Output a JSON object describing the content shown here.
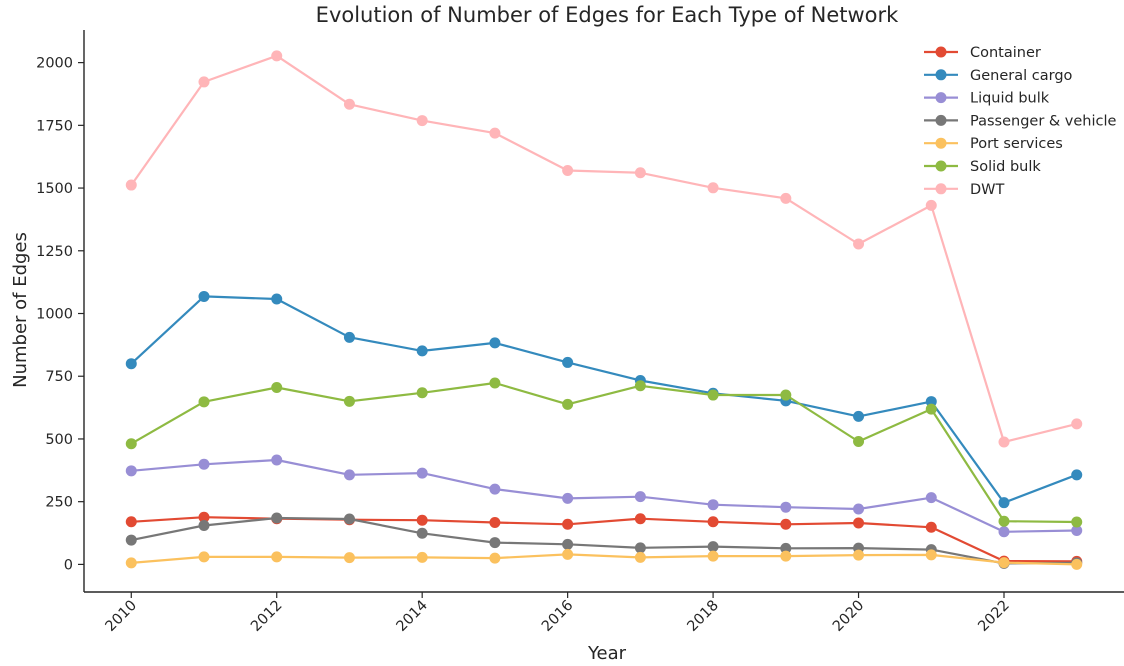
{
  "chart_data": {
    "type": "line",
    "title": "Evolution of Number of Edges for Each Type of Network",
    "xlabel": "Year",
    "ylabel": "Number of Edges",
    "x": [
      2010,
      2011,
      2012,
      2013,
      2014,
      2015,
      2016,
      2017,
      2018,
      2019,
      2020,
      2021,
      2022,
      2023
    ],
    "xticks": [
      2010,
      2012,
      2014,
      2016,
      2018,
      2020,
      2022
    ],
    "yticks": [
      0,
      250,
      500,
      750,
      1000,
      1250,
      1500,
      1750,
      2000
    ],
    "xlim": [
      2009.35,
      2023.65
    ],
    "ylim": [
      -110,
      2130
    ],
    "grid": false,
    "legend_position": "top-right",
    "series": [
      {
        "name": "Container",
        "color": "#e24a33",
        "values": [
          170,
          188,
          182,
          178,
          176,
          167,
          160,
          182,
          170,
          160,
          165,
          148,
          13,
          12
        ]
      },
      {
        "name": "General cargo",
        "color": "#348abd",
        "values": [
          800,
          1068,
          1058,
          905,
          851,
          883,
          805,
          733,
          682,
          652,
          590,
          649,
          246,
          357
        ]
      },
      {
        "name": "Liquid bulk",
        "color": "#988ed5",
        "values": [
          373,
          399,
          416,
          357,
          364,
          300,
          263,
          270,
          238,
          228,
          221,
          266,
          130,
          135
        ]
      },
      {
        "name": "Passenger & vehicle",
        "color": "#777777",
        "values": [
          97,
          155,
          185,
          181,
          124,
          87,
          80,
          66,
          71,
          64,
          65,
          59,
          4,
          6
        ]
      },
      {
        "name": "Port services",
        "color": "#fbc15e",
        "values": [
          6,
          30,
          30,
          27,
          28,
          25,
          40,
          28,
          33,
          33,
          37,
          38,
          7,
          0
        ]
      },
      {
        "name": "Solid bulk",
        "color": "#8eba42",
        "values": [
          481,
          648,
          705,
          650,
          684,
          723,
          638,
          712,
          675,
          675,
          490,
          619,
          172,
          169
        ]
      },
      {
        "name": "DWT",
        "color": "#ffb5b8",
        "values": [
          1512,
          1923,
          2027,
          1834,
          1769,
          1719,
          1570,
          1561,
          1501,
          1459,
          1277,
          1431,
          488,
          560
        ]
      }
    ]
  }
}
